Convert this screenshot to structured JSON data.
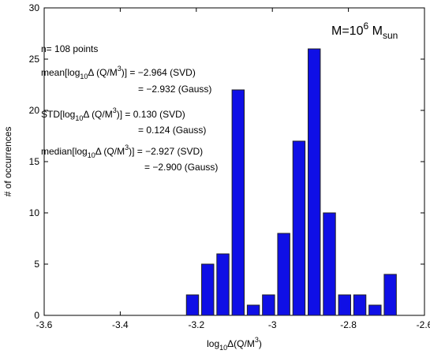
{
  "chart_data": {
    "type": "histogram",
    "xlabel": [
      "log",
      "10",
      "Δ(Q/M",
      "3",
      ")"
    ],
    "ylabel": "# of occurrences",
    "title": [
      "M=10",
      "6",
      " M",
      "sun"
    ],
    "bins": [
      -3.23,
      -3.19,
      -3.15,
      -3.11,
      -3.07,
      -3.03,
      -2.99,
      -2.95,
      -2.91,
      -2.87,
      -2.83,
      -2.79,
      -2.75,
      -2.71,
      -2.67
    ],
    "values": [
      2,
      5,
      6,
      22,
      1,
      2,
      8,
      17,
      26,
      10,
      2,
      2,
      1,
      4
    ],
    "color": "#0f0fe6",
    "xlim": [
      -3.6,
      -2.6
    ],
    "xticks": [
      -3.6,
      -3.4,
      -3.2,
      -3,
      -2.8,
      -2.6
    ],
    "ylim": [
      0,
      30
    ],
    "yticks": [
      0,
      5,
      10,
      15,
      20,
      25,
      30
    ],
    "annotations": {
      "n": "n= 108 points",
      "mean": [
        "mean[log",
        "10",
        "Δ (Q/M",
        "3",
        ")] = −2.964 (SVD)"
      ],
      "mean_gauss": "= −2.932 (Gauss)",
      "std": [
        "STD[log",
        "10",
        "Δ (Q/M",
        "3",
        ")] = 0.130 (SVD)"
      ],
      "std_gauss": "= 0.124 (Gauss)",
      "median": [
        "median[log",
        "10",
        "Δ (Q/M",
        "3",
        ")] = −2.927 (SVD)"
      ],
      "median_gauss": "= −2.900 (Gauss)"
    }
  }
}
